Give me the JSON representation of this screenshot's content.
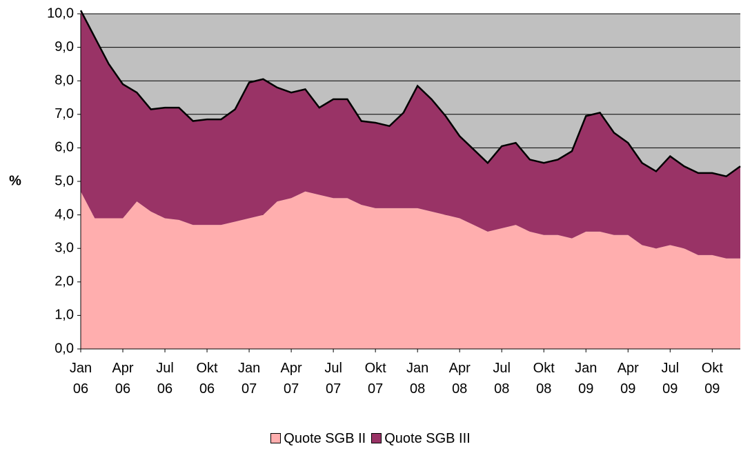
{
  "chart_data": {
    "type": "stacked_area",
    "ylabel": "%",
    "categories": [
      "Jan 06",
      null,
      null,
      "Apr 06",
      null,
      null,
      "Jul 06",
      null,
      null,
      "Okt 06",
      null,
      null,
      "Jan 07",
      null,
      null,
      "Apr 07",
      null,
      null,
      "Jul 07",
      null,
      null,
      "Okt 07",
      null,
      null,
      "Jan 08",
      null,
      null,
      "Apr 08",
      null,
      null,
      "Jul 08",
      null,
      null,
      "Okt 08",
      null,
      null,
      "Jan 09",
      null,
      null,
      "Apr 09",
      null,
      null,
      "Jul 09",
      null,
      null,
      "Okt 09",
      null,
      null
    ],
    "series": [
      {
        "name": "Quote SGB II",
        "color": "#ffaeae",
        "values": [
          4.7,
          3.9,
          3.9,
          3.9,
          4.4,
          4.1,
          3.9,
          3.85,
          3.7,
          3.7,
          3.7,
          3.8,
          3.9,
          4.0,
          4.4,
          4.5,
          4.7,
          4.6,
          4.5,
          4.5,
          4.3,
          4.2,
          4.2,
          4.2,
          4.2,
          4.1,
          4.0,
          3.9,
          3.7,
          3.5,
          3.6,
          3.7,
          3.5,
          3.4,
          3.4,
          3.3,
          3.5,
          3.5,
          3.4,
          3.4,
          3.1,
          3.0,
          3.1,
          3.0,
          2.8,
          2.8,
          2.7,
          2.7
        ]
      },
      {
        "name": "Quote SGB III",
        "color": "#993366",
        "values": [
          5.4,
          5.4,
          4.6,
          4.0,
          3.25,
          3.05,
          3.3,
          3.35,
          3.1,
          3.15,
          3.15,
          3.35,
          4.05,
          4.05,
          3.4,
          3.15,
          3.05,
          2.6,
          2.95,
          2.95,
          2.5,
          2.55,
          2.45,
          2.85,
          3.65,
          3.35,
          2.95,
          2.45,
          2.25,
          2.05,
          2.45,
          2.45,
          2.15,
          2.15,
          2.25,
          2.6,
          3.45,
          3.55,
          3.05,
          2.75,
          2.45,
          2.3,
          2.65,
          2.45,
          2.45,
          2.45,
          2.45,
          2.75
        ]
      }
    ],
    "ylim": [
      0,
      10
    ],
    "yticks": [
      {
        "value": 0,
        "label": "0,0"
      },
      {
        "value": 1,
        "label": "1,0"
      },
      {
        "value": 2,
        "label": "2,0"
      },
      {
        "value": 3,
        "label": "3,0"
      },
      {
        "value": 4,
        "label": "4,0"
      },
      {
        "value": 5,
        "label": "5,0"
      },
      {
        "value": 6,
        "label": "6,0"
      },
      {
        "value": 7,
        "label": "7,0"
      },
      {
        "value": 8,
        "label": "8,0"
      },
      {
        "value": 9,
        "label": "9,0"
      },
      {
        "value": 10,
        "label": "10,0"
      }
    ],
    "grid": true,
    "background": "#c0c0c0",
    "legend": "bottom"
  }
}
